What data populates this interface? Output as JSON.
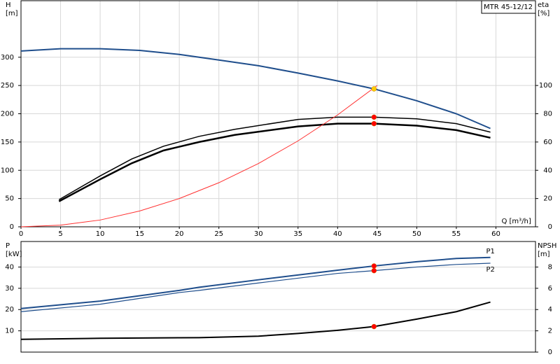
{
  "chart_data": [
    {
      "type": "line",
      "title": "MTR 45-12/12",
      "ylabel": [
        "H",
        "[m]"
      ],
      "y2label": [
        "eta",
        "[%]"
      ],
      "xlabel": "Q [m³/h]",
      "xlim": [
        0,
        65
      ],
      "xticks": [
        0,
        5,
        10,
        15,
        20,
        25,
        30,
        35,
        40,
        45,
        50,
        55,
        60
      ],
      "ylim": [
        0,
        400
      ],
      "yticks": [
        0,
        50,
        100,
        150,
        200,
        250,
        300
      ],
      "y2lim": [
        0,
        160
      ],
      "y2ticks": [
        0,
        20,
        40,
        60,
        80,
        100
      ],
      "grid": true,
      "series": [
        {
          "color": "#1f4e8c",
          "width": 2,
          "x": [
            0,
            5,
            10,
            15,
            20,
            22.5,
            25,
            30,
            35,
            40,
            44.6,
            50,
            55,
            59.3
          ],
          "values": [
            311,
            315,
            315,
            312,
            305,
            300,
            295,
            285,
            272,
            258,
            244,
            223,
            200,
            174
          ]
        },
        {
          "color": "#000000",
          "width": 1.5,
          "axis": "y2",
          "x": [
            4.8,
            10,
            14,
            18,
            22.5,
            27,
            35,
            40,
            44.6,
            50,
            55,
            59.3
          ],
          "values": [
            19.2,
            36,
            48,
            57,
            64,
            69,
            76,
            77.6,
            77.6,
            76.4,
            73,
            67
          ]
        },
        {
          "color": "#000000",
          "width": 2.5,
          "axis": "y2",
          "x": [
            4.8,
            10,
            14,
            18,
            22.5,
            27,
            35,
            40,
            44.6,
            50,
            55,
            59.3
          ],
          "values": [
            18,
            33.6,
            45,
            54,
            60,
            65,
            71,
            73,
            73,
            71.6,
            68.4,
            63
          ]
        },
        {
          "color": "#ff3030",
          "width": 1,
          "x": [
            0,
            5,
            10,
            15,
            20,
            25,
            30,
            35,
            40,
            45
          ],
          "values": [
            0,
            3,
            12,
            28,
            50,
            78,
            112,
            152,
            198,
            250
          ]
        }
      ],
      "markers": [
        {
          "x": 44.6,
          "y": 244,
          "color": "#ffcc00"
        },
        {
          "x": 44.6,
          "y": 77.6,
          "color": "#ff0000",
          "axis": "y2"
        },
        {
          "x": 44.6,
          "y": 73,
          "color": "#ff0000",
          "axis": "y2"
        }
      ]
    },
    {
      "type": "line",
      "ylabel": [
        "P",
        "[kW]"
      ],
      "y2label": [
        "NPSH",
        "[m]"
      ],
      "xlim": [
        0,
        65
      ],
      "ylim": [
        0,
        52
      ],
      "yticks": [
        10,
        20,
        30,
        40
      ],
      "y2lim": [
        0,
        10.4
      ],
      "y2ticks": [
        0,
        2,
        4,
        6,
        8
      ],
      "grid": true,
      "series": [
        {
          "name": "P1",
          "color": "#1f4e8c",
          "width": 2,
          "x": [
            0,
            10,
            20,
            22.5,
            30,
            40,
            44.6,
            50,
            55,
            59.3
          ],
          "values": [
            20.5,
            24,
            29,
            30.5,
            34,
            38.5,
            40.5,
            42.5,
            44,
            44.5
          ]
        },
        {
          "name": "P2",
          "color": "#1f4e8c",
          "width": 1.2,
          "x": [
            0,
            10,
            20,
            22.5,
            30,
            40,
            44.6,
            50,
            55,
            59.3
          ],
          "values": [
            19,
            22.5,
            28,
            29,
            32.5,
            37,
            38.3,
            40,
            41.2,
            41.8
          ]
        },
        {
          "color": "#000000",
          "width": 2,
          "axis": "y2",
          "x": [
            0,
            10,
            20,
            22.5,
            30,
            35,
            40,
            44.6,
            50,
            55,
            59.3
          ],
          "values": [
            1.2,
            1.3,
            1.35,
            1.36,
            1.5,
            1.75,
            2.05,
            2.4,
            3.1,
            3.8,
            4.7
          ]
        }
      ],
      "markers": [
        {
          "x": 44.6,
          "y": 40.5,
          "color": "#ff0000"
        },
        {
          "x": 44.6,
          "y": 38.3,
          "color": "#ff0000"
        },
        {
          "x": 44.6,
          "y": 2.4,
          "color": "#ff0000",
          "axis": "y2"
        }
      ]
    }
  ]
}
